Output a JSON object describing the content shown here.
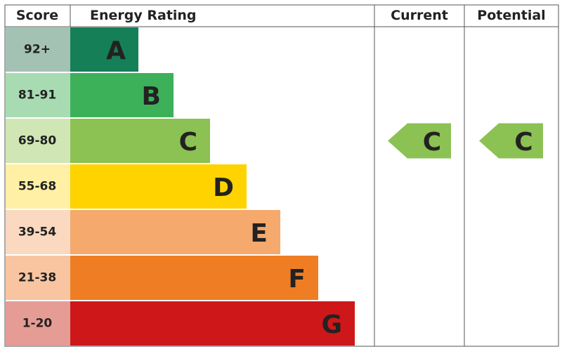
{
  "header": {
    "score": "Score",
    "rating": "Energy Rating",
    "current": "Current",
    "potential": "Potential"
  },
  "rows": [
    {
      "score": "92+",
      "rating": "A",
      "color": "#157f57",
      "score_color": "#a3c2b4"
    },
    {
      "score": "81-91",
      "rating": "B",
      "color": "#3cb15a",
      "score_color": "#a9dbb3"
    },
    {
      "score": "69-80",
      "rating": "C",
      "color": "#8cc153",
      "score_color": "#d0e6b5"
    },
    {
      "score": "55-68",
      "rating": "D",
      "color": "#fed300",
      "score_color": "#fff0a5"
    },
    {
      "score": "39-54",
      "rating": "E",
      "color": "#f5a96c",
      "score_color": "#fbd9c1"
    },
    {
      "score": "21-38",
      "rating": "F",
      "color": "#ef7d23",
      "score_color": "#f8c5a0"
    },
    {
      "score": "1-20",
      "rating": "G",
      "color": "#cd1719",
      "score_color": "#e59c95"
    }
  ],
  "current": "C",
  "potential": "C"
}
